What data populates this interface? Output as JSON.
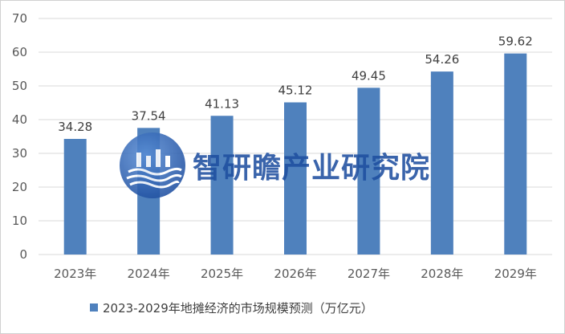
{
  "chart_data": {
    "type": "bar",
    "categories": [
      "2023年",
      "2024年",
      "2025年",
      "2026年",
      "2027年",
      "2028年",
      "2029年"
    ],
    "series": [
      {
        "name": "2023-2029年地摊经济的市场规模预测（万亿元）",
        "values": [
          34.28,
          37.54,
          41.13,
          45.12,
          49.45,
          54.26,
          59.62
        ]
      }
    ],
    "data_labels": [
      "34.28",
      "37.54",
      "41.13",
      "45.12",
      "49.45",
      "54.26",
      "59.62"
    ],
    "y_ticks": [
      "0",
      "10",
      "20",
      "30",
      "40",
      "50",
      "60",
      "70"
    ],
    "ylim": [
      0,
      70
    ],
    "grid": true,
    "legend_position": "bottom",
    "bar_color": "#4f81bd",
    "gridline_color": "#d9d9d9"
  },
  "watermark": {
    "text": "智研瞻产业研究院",
    "logo_icon": "zhiyanzhan-logo-icon",
    "color": "#1f4fa0"
  }
}
